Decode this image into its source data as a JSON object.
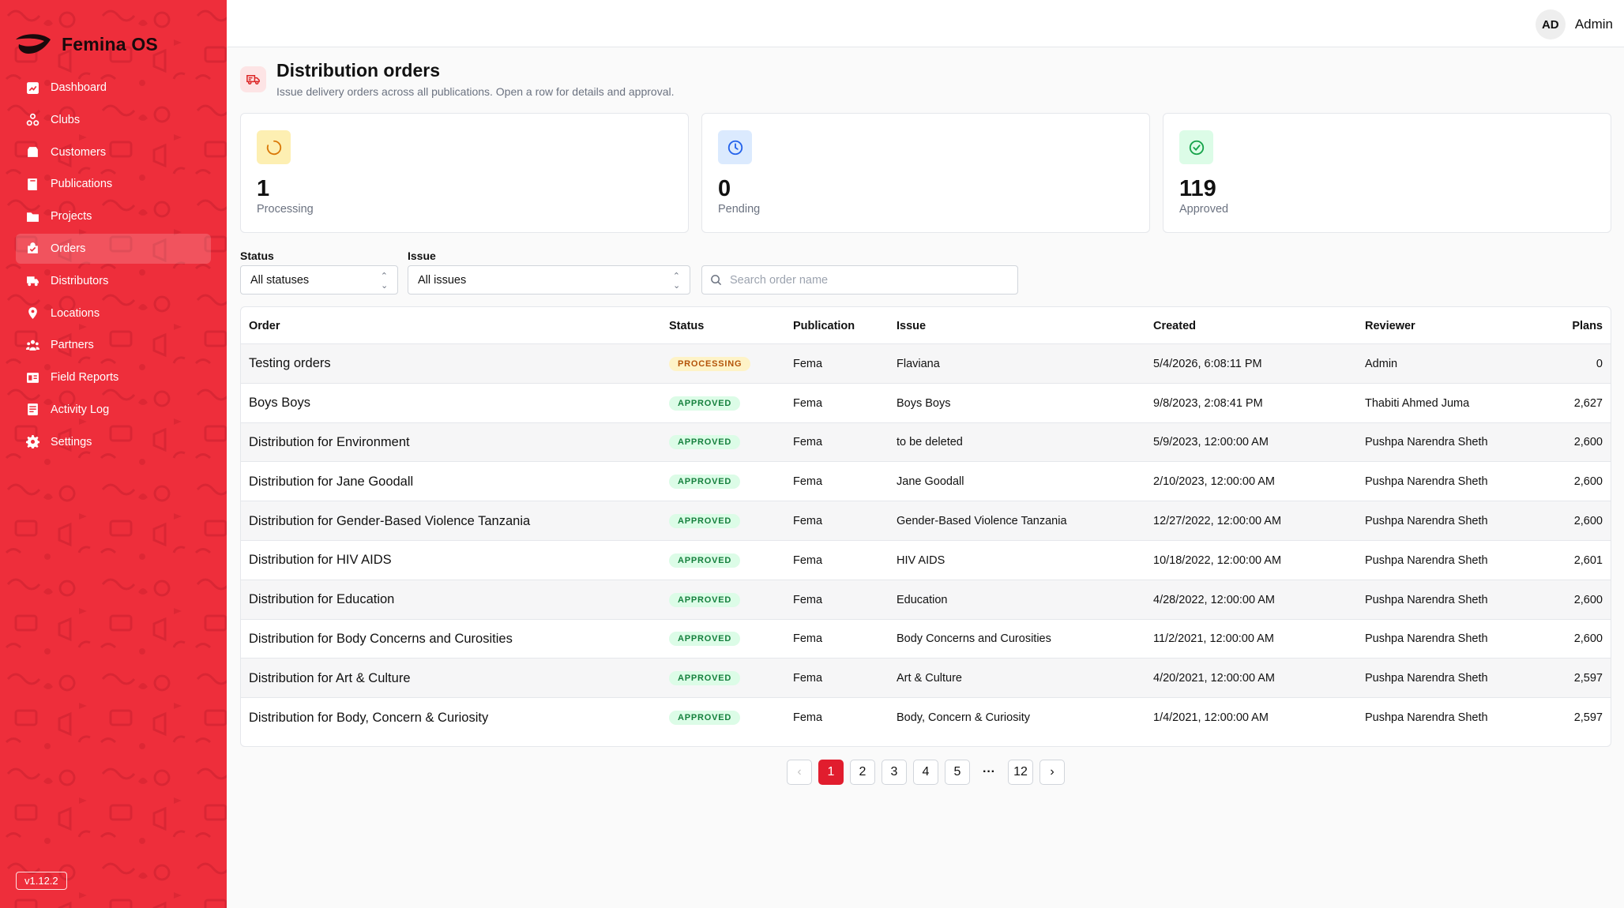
{
  "app": {
    "name": "Femina OS",
    "version": "v1.12.2"
  },
  "sidebar": {
    "items": [
      {
        "label": "Dashboard",
        "icon": "dashboard-icon"
      },
      {
        "label": "Clubs",
        "icon": "clubs-icon"
      },
      {
        "label": "Customers",
        "icon": "customers-icon"
      },
      {
        "label": "Publications",
        "icon": "book-icon"
      },
      {
        "label": "Projects",
        "icon": "folder-icon"
      },
      {
        "label": "Orders",
        "icon": "orders-icon",
        "active": true
      },
      {
        "label": "Distributors",
        "icon": "truck-icon"
      },
      {
        "label": "Locations",
        "icon": "location-pin-icon"
      },
      {
        "label": "Partners",
        "icon": "partners-icon"
      },
      {
        "label": "Field Reports",
        "icon": "report-icon"
      },
      {
        "label": "Activity Log",
        "icon": "activity-log-icon"
      },
      {
        "label": "Settings",
        "icon": "gear-icon"
      }
    ]
  },
  "topbar": {
    "avatar_initials": "AD",
    "user_name": "Admin"
  },
  "page": {
    "title": "Distribution orders",
    "subtitle": "Issue delivery orders across all publications. Open a row for details and approval."
  },
  "stats": [
    {
      "value": "1",
      "label": "Processing",
      "icon": "spinner-icon",
      "color": "#fdefb2"
    },
    {
      "value": "0",
      "label": "Pending",
      "icon": "clock-icon",
      "color": "#dbeafe"
    },
    {
      "value": "119",
      "label": "Approved",
      "icon": "check-circle-icon",
      "color": "#dcfce7"
    }
  ],
  "filters": {
    "status_label": "Status",
    "status_value": "All statuses",
    "issue_label": "Issue",
    "issue_value": "All issues",
    "search_placeholder": "Search order name"
  },
  "table": {
    "headers": {
      "order": "Order",
      "status": "Status",
      "publication": "Publication",
      "issue": "Issue",
      "created": "Created",
      "reviewer": "Reviewer",
      "plans": "Plans"
    },
    "rows": [
      {
        "order": "Testing orders",
        "status": "PROCESSING",
        "status_kind": "processing",
        "publication": "Fema",
        "issue": "Flaviana",
        "created": "5/4/2026, 6:08:11 PM",
        "reviewer": "Admin",
        "plans": "0"
      },
      {
        "order": "Boys Boys",
        "status": "APPROVED",
        "status_kind": "approved",
        "publication": "Fema",
        "issue": "Boys Boys",
        "created": "9/8/2023, 2:08:41 PM",
        "reviewer": "Thabiti Ahmed Juma",
        "plans": "2,627"
      },
      {
        "order": "Distribution for Environment",
        "status": "APPROVED",
        "status_kind": "approved",
        "publication": "Fema",
        "issue": "to be deleted",
        "created": "5/9/2023, 12:00:00 AM",
        "reviewer": "Pushpa Narendra Sheth",
        "plans": "2,600"
      },
      {
        "order": "Distribution for Jane Goodall",
        "status": "APPROVED",
        "status_kind": "approved",
        "publication": "Fema",
        "issue": "Jane Goodall",
        "created": "2/10/2023, 12:00:00 AM",
        "reviewer": "Pushpa Narendra Sheth",
        "plans": "2,600"
      },
      {
        "order": "Distribution for Gender-Based Violence Tanzania",
        "status": "APPROVED",
        "status_kind": "approved",
        "publication": "Fema",
        "issue": "Gender-Based Violence Tanzania",
        "created": "12/27/2022, 12:00:00 AM",
        "reviewer": "Pushpa Narendra Sheth",
        "plans": "2,600"
      },
      {
        "order": "Distribution for HIV AIDS",
        "status": "APPROVED",
        "status_kind": "approved",
        "publication": "Fema",
        "issue": "HIV AIDS",
        "created": "10/18/2022, 12:00:00 AM",
        "reviewer": "Pushpa Narendra Sheth",
        "plans": "2,601"
      },
      {
        "order": "Distribution for Education",
        "status": "APPROVED",
        "status_kind": "approved",
        "publication": "Fema",
        "issue": "Education",
        "created": "4/28/2022, 12:00:00 AM",
        "reviewer": "Pushpa Narendra Sheth",
        "plans": "2,600"
      },
      {
        "order": "Distribution for Body Concerns and Curosities",
        "status": "APPROVED",
        "status_kind": "approved",
        "publication": "Fema",
        "issue": "Body Concerns and Curosities",
        "created": "11/2/2021, 12:00:00 AM",
        "reviewer": "Pushpa Narendra Sheth",
        "plans": "2,600"
      },
      {
        "order": "Distribution for Art & Culture",
        "status": "APPROVED",
        "status_kind": "approved",
        "publication": "Fema",
        "issue": "Art & Culture",
        "created": "4/20/2021, 12:00:00 AM",
        "reviewer": "Pushpa Narendra Sheth",
        "plans": "2,597"
      },
      {
        "order": "Distribution for Body, Concern & Curiosity",
        "status": "APPROVED",
        "status_kind": "approved",
        "publication": "Fema",
        "issue": "Body, Concern & Curiosity",
        "created": "1/4/2021, 12:00:00 AM",
        "reviewer": "Pushpa Narendra Sheth",
        "plans": "2,597"
      }
    ]
  },
  "pagination": {
    "prev": "‹",
    "next": "›",
    "pages": [
      "1",
      "2",
      "3",
      "4",
      "5"
    ],
    "ellipsis": "···",
    "last": "12",
    "current": "1"
  },
  "colors": {
    "brand": "#ee2e3b",
    "active_page": "#e11d2e"
  }
}
